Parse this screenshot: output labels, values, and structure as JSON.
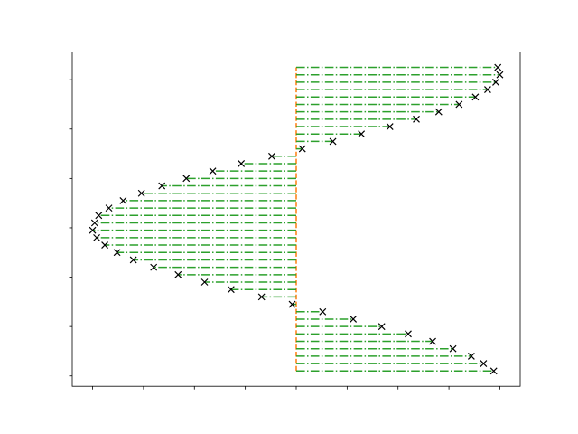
{
  "chart_data": {
    "type": "scatter",
    "y": [
      -2.9,
      -2.75,
      -2.6,
      -2.45,
      -2.3,
      -2.15,
      -2.0,
      -1.85,
      -1.7,
      -1.55,
      -1.4,
      -1.25,
      -1.1,
      -0.95,
      -0.8,
      -0.65,
      -0.5,
      -0.35,
      -0.2,
      -0.05,
      0.1,
      0.25,
      0.4,
      0.55,
      0.7,
      0.85,
      1.0,
      1.15,
      1.3,
      1.45,
      1.6,
      1.75,
      1.9,
      2.05,
      2.2,
      2.35,
      2.5,
      2.65,
      2.8,
      2.95,
      3.1,
      3.25
    ],
    "x": [
      0.97,
      0.92,
      0.86,
      0.77,
      0.67,
      0.55,
      0.42,
      0.28,
      0.13,
      -0.02,
      -0.17,
      -0.32,
      -0.45,
      -0.58,
      -0.7,
      -0.8,
      -0.88,
      -0.94,
      -0.98,
      -1.0,
      -0.99,
      -0.97,
      -0.92,
      -0.85,
      -0.76,
      -0.66,
      -0.54,
      -0.41,
      -0.27,
      -0.12,
      0.03,
      0.18,
      0.32,
      0.46,
      0.59,
      0.7,
      0.8,
      0.88,
      0.94,
      0.98,
      1.0,
      0.99
    ],
    "vline_x": 0,
    "marker_color": "#000000",
    "hline_color": "#2ca02c",
    "vline_color": "#ff7f0e",
    "xlim": [
      -1.1,
      1.1
    ],
    "ylim": [
      -3.21,
      3.56
    ],
    "xticks": [
      -1,
      -0.75,
      -0.5,
      -0.25,
      0,
      0.25,
      0.5,
      0.75,
      1
    ],
    "yticks": [
      -3,
      -2,
      -1,
      0,
      1,
      2,
      3
    ]
  }
}
